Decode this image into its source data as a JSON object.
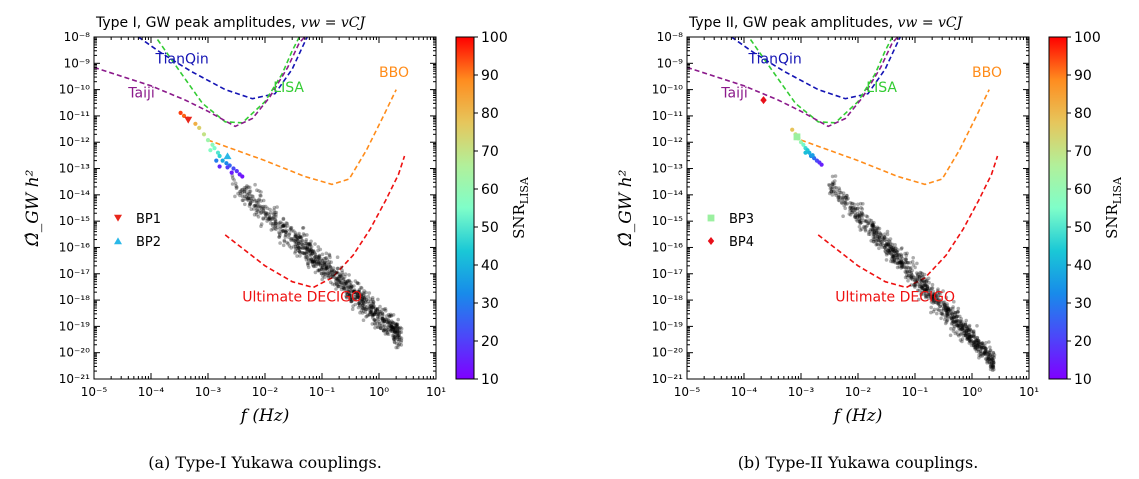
{
  "captions": [
    "(a)  Type-I Yukawa couplings.",
    "(b)  Type-II Yukawa couplings."
  ],
  "colorbar": {
    "label": "SNR_LISA",
    "min": 10,
    "max": 100,
    "ticks": [
      10,
      20,
      30,
      40,
      50,
      60,
      70,
      80,
      90,
      100
    ]
  },
  "colors": {
    "tianqin": "#1414b4",
    "lisa": "#33cc33",
    "taiji": "#8b1a8b",
    "bbo": "#ff8c1a",
    "decigo": "#ee1111",
    "scatter": "#000000"
  },
  "chart_data": [
    {
      "type": "scatter",
      "title": "Type I,  GW peak amplitudes, v_w = v_CJ",
      "xlabel": "f (Hz)",
      "ylabel": "Ω̂_GW h²",
      "xscale": "log",
      "yscale": "log",
      "xlim": [
        1e-05,
        10
      ],
      "ylim": [
        1e-21,
        1e-08
      ],
      "xticks": [
        "10⁻⁵",
        "10⁻⁴",
        "10⁻³",
        "10⁻²",
        "10⁻¹",
        "10⁰",
        "10¹"
      ],
      "yticks": [
        "10⁻⁸",
        "10⁻⁹",
        "10⁻¹⁰",
        "10⁻¹¹",
        "10⁻¹²",
        "10⁻¹³",
        "10⁻¹⁴",
        "10⁻¹⁵",
        "10⁻¹⁶",
        "10⁻¹⁷",
        "10⁻¹⁸",
        "10⁻¹⁹",
        "10⁻²⁰",
        "10⁻²¹"
      ],
      "curve_labels": [
        {
          "name": "TianQin",
          "f": 0.00012,
          "omega": 1e-09,
          "color": "tianqin"
        },
        {
          "name": "LISA",
          "f": 0.014,
          "omega": 8e-11,
          "color": "lisa"
        },
        {
          "name": "Taiji",
          "f": 4e-05,
          "omega": 5e-11,
          "color": "taiji"
        },
        {
          "name": "BBO",
          "f": 1.0,
          "omega": 3e-10,
          "color": "bbo"
        },
        {
          "name": "Ultimate DECIGO",
          "f": 0.004,
          "omega": 9e-19,
          "color": "decigo"
        }
      ],
      "sensitivity_curves": [
        {
          "name": "TianQin",
          "color": "tianqin",
          "points": [
            [
              6e-05,
              1e-08
            ],
            [
              0.00015,
              2.5e-09
            ],
            [
              0.0005,
              5e-10
            ],
            [
              0.002,
              1e-10
            ],
            [
              0.006,
              4.5e-11
            ],
            [
              0.015,
              7e-11
            ],
            [
              0.03,
              6e-10
            ],
            [
              0.045,
              4e-09
            ],
            [
              0.055,
              1e-08
            ]
          ]
        },
        {
          "name": "LISA",
          "color": "lisa",
          "points": [
            [
              0.00013,
              8e-09
            ],
            [
              0.0003,
              6e-10
            ],
            [
              0.0008,
              3e-11
            ],
            [
              0.002,
              6e-12
            ],
            [
              0.004,
              5.5e-12
            ],
            [
              0.01,
              3.5e-11
            ],
            [
              0.02,
              4e-10
            ],
            [
              0.03,
              3e-09
            ],
            [
              0.04,
              1e-08
            ]
          ]
        },
        {
          "name": "Taiji",
          "color": "taiji",
          "points": [
            [
              1e-05,
              7e-10
            ],
            [
              0.0001,
              1.4e-10
            ],
            [
              0.0004,
              4e-11
            ],
            [
              0.001,
              1.5e-11
            ],
            [
              0.002,
              6.5e-12
            ],
            [
              0.003,
              4e-12
            ],
            [
              0.006,
              8e-12
            ],
            [
              0.012,
              5e-11
            ],
            [
              0.025,
              7e-10
            ],
            [
              0.04,
              6e-09
            ],
            [
              0.05,
              1e-08
            ]
          ]
        },
        {
          "name": "BBO",
          "color": "bbo",
          "points": [
            [
              0.001,
              1.2e-12
            ],
            [
              0.01,
              2e-13
            ],
            [
              0.05,
              5e-14
            ],
            [
              0.15,
              2.5e-14
            ],
            [
              0.3,
              4e-14
            ],
            [
              0.6,
              5e-13
            ],
            [
              1.2,
              1e-11
            ],
            [
              2,
              1e-10
            ]
          ]
        },
        {
          "name": "Ultimate DECIGO",
          "color": "decigo",
          "points": [
            [
              0.002,
              3e-16
            ],
            [
              0.01,
              2e-17
            ],
            [
              0.03,
              5e-18
            ],
            [
              0.07,
              3e-18
            ],
            [
              0.15,
              7e-18
            ],
            [
              0.35,
              5e-17
            ],
            [
              0.7,
              5e-16
            ],
            [
              1.3,
              6e-15
            ],
            [
              2.2,
              6e-14
            ],
            [
              2.8,
              3e-13
            ]
          ]
        }
      ],
      "band": {
        "f_start": 0.0025,
        "omega_start": 3e-14,
        "f_end": 2.5,
        "omega_end": 4e-20,
        "count": 900,
        "spread": 0.18
      },
      "colored_points": [
        {
          "f": 0.00044,
          "omega": 8e-12,
          "snr": 88
        },
        {
          "f": 0.00038,
          "omega": 1e-11,
          "snr": 92
        },
        {
          "f": 0.00033,
          "omega": 1.3e-11,
          "snr": 95
        },
        {
          "f": 0.0006,
          "omega": 5e-12,
          "snr": 82
        },
        {
          "f": 0.0007,
          "omega": 3.5e-12,
          "snr": 75
        },
        {
          "f": 0.00085,
          "omega": 2e-12,
          "snr": 70
        },
        {
          "f": 0.001,
          "omega": 1.2e-12,
          "snr": 62
        },
        {
          "f": 0.0012,
          "omega": 8e-13,
          "snr": 58
        },
        {
          "f": 0.0013,
          "omega": 6e-13,
          "snr": 55
        },
        {
          "f": 0.0015,
          "omega": 4e-13,
          "snr": 50
        },
        {
          "f": 0.0011,
          "omega": 5e-13,
          "snr": 56
        },
        {
          "f": 0.0016,
          "omega": 3e-13,
          "snr": 46
        },
        {
          "f": 0.0018,
          "omega": 2e-13,
          "snr": 38
        },
        {
          "f": 0.0021,
          "omega": 1.6e-13,
          "snr": 32
        },
        {
          "f": 0.0024,
          "omega": 1.3e-13,
          "snr": 26
        },
        {
          "f": 0.0028,
          "omega": 1e-13,
          "snr": 22
        },
        {
          "f": 0.0032,
          "omega": 8e-14,
          "snr": 18
        },
        {
          "f": 0.0036,
          "omega": 6e-14,
          "snr": 15
        },
        {
          "f": 0.0022,
          "omega": 1.1e-13,
          "snr": 20
        },
        {
          "f": 0.004,
          "omega": 5e-14,
          "snr": 13
        },
        {
          "f": 0.0016,
          "omega": 1.2e-13,
          "snr": 16
        },
        {
          "f": 0.0026,
          "omega": 7e-14,
          "snr": 14
        },
        {
          "f": 0.0014,
          "omega": 2e-13,
          "snr": 30
        }
      ],
      "benchmarks": [
        {
          "name": "BP1",
          "f": 0.00045,
          "omega": 7e-12,
          "snr": 95,
          "marker": "triangle-down",
          "color": "#e8261b"
        },
        {
          "name": "BP2",
          "f": 0.0022,
          "omega": 3e-13,
          "snr": 48,
          "marker": "triangle-up",
          "color": "#2ab8e8"
        }
      ],
      "legend": [
        {
          "name": "BP1",
          "marker": "triangle-down",
          "color": "#e8261b"
        },
        {
          "name": "BP2",
          "marker": "triangle-up",
          "color": "#2ab8e8"
        }
      ]
    },
    {
      "type": "scatter",
      "title": "Type II,  GW peak amplitudes, v_w = v_CJ",
      "xlabel": "f (Hz)",
      "ylabel": "Ω̂_GW h²",
      "xscale": "log",
      "yscale": "log",
      "xlim": [
        1e-05,
        10
      ],
      "ylim": [
        1e-21,
        1e-08
      ],
      "xticks": [
        "10⁻⁵",
        "10⁻⁴",
        "10⁻³",
        "10⁻²",
        "10⁻¹",
        "10⁰",
        "10¹"
      ],
      "yticks": [
        "10⁻⁸",
        "10⁻⁹",
        "10⁻¹⁰",
        "10⁻¹¹",
        "10⁻¹²",
        "10⁻¹³",
        "10⁻¹⁴",
        "10⁻¹⁵",
        "10⁻¹⁶",
        "10⁻¹⁷",
        "10⁻¹⁸",
        "10⁻¹⁹",
        "10⁻²⁰",
        "10⁻²¹"
      ],
      "curve_labels": [
        {
          "name": "TianQin",
          "f": 0.00012,
          "omega": 1e-09,
          "color": "tianqin"
        },
        {
          "name": "LISA",
          "f": 0.014,
          "omega": 8e-11,
          "color": "lisa"
        },
        {
          "name": "Taiji",
          "f": 4e-05,
          "omega": 5e-11,
          "color": "taiji"
        },
        {
          "name": "BBO",
          "f": 1.0,
          "omega": 3e-10,
          "color": "bbo"
        },
        {
          "name": "Ultimate DECIGO",
          "f": 0.004,
          "omega": 9e-19,
          "color": "decigo"
        }
      ],
      "sensitivity_curves": [
        {
          "name": "TianQin",
          "color": "tianqin",
          "points": [
            [
              6e-05,
              1e-08
            ],
            [
              0.00015,
              2.5e-09
            ],
            [
              0.0005,
              5e-10
            ],
            [
              0.002,
              1e-10
            ],
            [
              0.006,
              4.5e-11
            ],
            [
              0.015,
              7e-11
            ],
            [
              0.03,
              6e-10
            ],
            [
              0.045,
              4e-09
            ],
            [
              0.055,
              1e-08
            ]
          ]
        },
        {
          "name": "LISA",
          "color": "lisa",
          "points": [
            [
              0.00013,
              8e-09
            ],
            [
              0.0003,
              6e-10
            ],
            [
              0.0008,
              3e-11
            ],
            [
              0.002,
              6e-12
            ],
            [
              0.004,
              5.5e-12
            ],
            [
              0.01,
              3.5e-11
            ],
            [
              0.02,
              4e-10
            ],
            [
              0.03,
              3e-09
            ],
            [
              0.04,
              1e-08
            ]
          ]
        },
        {
          "name": "Taiji",
          "color": "taiji",
          "points": [
            [
              1e-05,
              7e-10
            ],
            [
              0.0001,
              1.4e-10
            ],
            [
              0.0004,
              4e-11
            ],
            [
              0.001,
              1.5e-11
            ],
            [
              0.002,
              6.5e-12
            ],
            [
              0.003,
              4e-12
            ],
            [
              0.006,
              8e-12
            ],
            [
              0.012,
              5e-11
            ],
            [
              0.025,
              7e-10
            ],
            [
              0.04,
              6e-09
            ],
            [
              0.05,
              1e-08
            ]
          ]
        },
        {
          "name": "BBO",
          "color": "bbo",
          "points": [
            [
              0.001,
              1.2e-12
            ],
            [
              0.01,
              2e-13
            ],
            [
              0.05,
              5e-14
            ],
            [
              0.15,
              2.5e-14
            ],
            [
              0.3,
              4e-14
            ],
            [
              0.6,
              5e-13
            ],
            [
              1.2,
              1e-11
            ],
            [
              2,
              1e-10
            ]
          ]
        },
        {
          "name": "Ultimate DECIGO",
          "color": "decigo",
          "points": [
            [
              0.002,
              3e-16
            ],
            [
              0.01,
              2e-17
            ],
            [
              0.03,
              5e-18
            ],
            [
              0.07,
              3e-18
            ],
            [
              0.15,
              7e-18
            ],
            [
              0.35,
              5e-17
            ],
            [
              0.7,
              5e-16
            ],
            [
              1.3,
              6e-15
            ],
            [
              2.2,
              6e-14
            ],
            [
              2.8,
              3e-13
            ]
          ]
        }
      ],
      "band": {
        "f_start": 0.003,
        "omega_start": 3e-14,
        "f_end": 2.5,
        "omega_end": 4e-21,
        "count": 900,
        "spread": 0.15
      },
      "colored_points": [
        {
          "f": 0.00022,
          "omega": 4e-11,
          "snr": 98
        },
        {
          "f": 0.0007,
          "omega": 3e-12,
          "snr": 78
        },
        {
          "f": 0.0008,
          "omega": 2e-12,
          "snr": 72
        },
        {
          "f": 0.0009,
          "omega": 1.4e-12,
          "snr": 66
        },
        {
          "f": 0.001,
          "omega": 1e-12,
          "snr": 60
        },
        {
          "f": 0.0011,
          "omega": 8e-13,
          "snr": 54
        },
        {
          "f": 0.0012,
          "omega": 6e-13,
          "snr": 48
        },
        {
          "f": 0.0013,
          "omega": 5e-13,
          "snr": 44
        },
        {
          "f": 0.0014,
          "omega": 4e-13,
          "snr": 40
        },
        {
          "f": 0.0015,
          "omega": 3e-13,
          "snr": 34
        },
        {
          "f": 0.0017,
          "omega": 2.5e-13,
          "snr": 28
        },
        {
          "f": 0.0019,
          "omega": 2e-13,
          "snr": 22
        },
        {
          "f": 0.0021,
          "omega": 1.7e-13,
          "snr": 18
        },
        {
          "f": 0.0023,
          "omega": 1.4e-13,
          "snr": 15
        },
        {
          "f": 0.0012,
          "omega": 4e-13,
          "snr": 42
        },
        {
          "f": 0.0016,
          "omega": 3.2e-13,
          "snr": 36
        }
      ],
      "benchmarks": [
        {
          "name": "BP3",
          "f": 0.00085,
          "omega": 1.6e-12,
          "snr": 68,
          "marker": "square",
          "color": "#9bf0a0"
        },
        {
          "name": "BP4",
          "f": 0.00022,
          "omega": 4e-11,
          "snr": 98,
          "marker": "diamond",
          "color": "#e8101a"
        }
      ],
      "legend": [
        {
          "name": "BP3",
          "marker": "square",
          "color": "#9bf0a0"
        },
        {
          "name": "BP4",
          "marker": "diamond",
          "color": "#e8101a"
        }
      ]
    }
  ]
}
